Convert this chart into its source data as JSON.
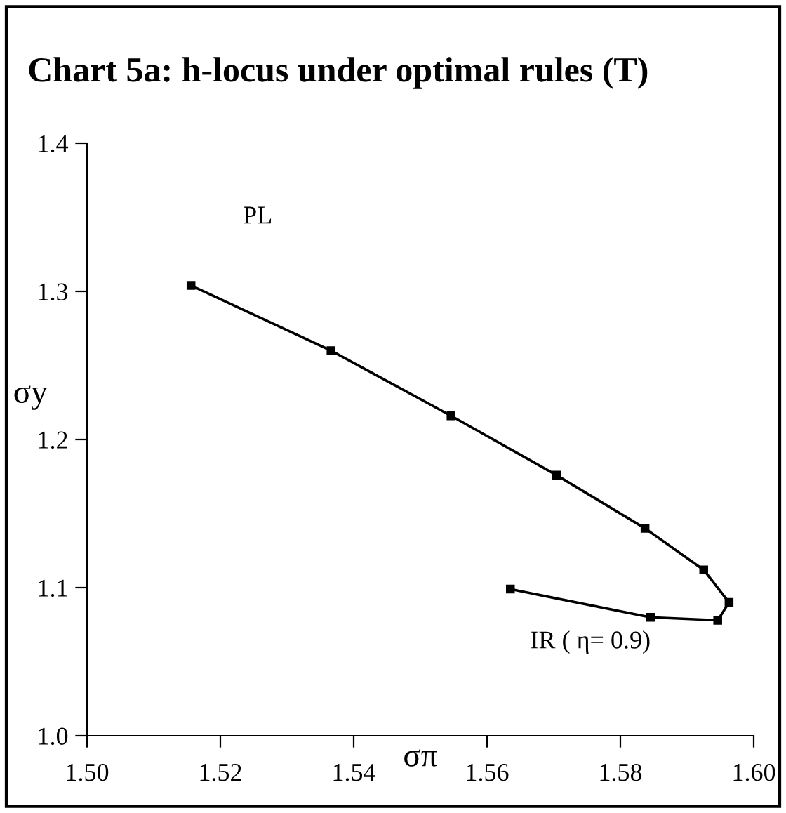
{
  "chart_data": {
    "type": "line",
    "title": "Chart 5a: h-locus under optimal rules (T)",
    "xlabel": "σπ",
    "ylabel": "σy",
    "x": [
      1.5156,
      1.5366,
      1.5546,
      1.5704,
      1.5837,
      1.5925,
      1.5963,
      1.5946,
      1.5845,
      1.5635
    ],
    "values": [
      1.304,
      1.26,
      1.216,
      1.176,
      1.14,
      1.112,
      1.09,
      1.078,
      1.08,
      1.099
    ],
    "color": "#000000",
    "marker": "square",
    "line_style": "solid",
    "grid": false,
    "legend": false,
    "xlim": [
      1.5,
      1.6
    ],
    "xticks": [
      {
        "value": 1.5,
        "label": "1.50"
      },
      {
        "value": 1.52,
        "label": "1.52"
      },
      {
        "value": 1.54,
        "label": "1.54"
      },
      {
        "value": 1.56,
        "label": "1.56"
      },
      {
        "value": 1.58,
        "label": "1.58"
      },
      {
        "value": 1.6,
        "label": "1.60"
      }
    ],
    "ylim": [
      1.0,
      1.4
    ],
    "yticks": [
      {
        "value": 1.0,
        "label": "1.0"
      },
      {
        "value": 1.1,
        "label": "1.1"
      },
      {
        "value": 1.2,
        "label": "1.2"
      },
      {
        "value": 1.3,
        "label": "1.3"
      },
      {
        "value": 1.4,
        "label": "1.4"
      }
    ],
    "annotations": [
      "PL",
      "IR ( η= 0.9)"
    ]
  }
}
